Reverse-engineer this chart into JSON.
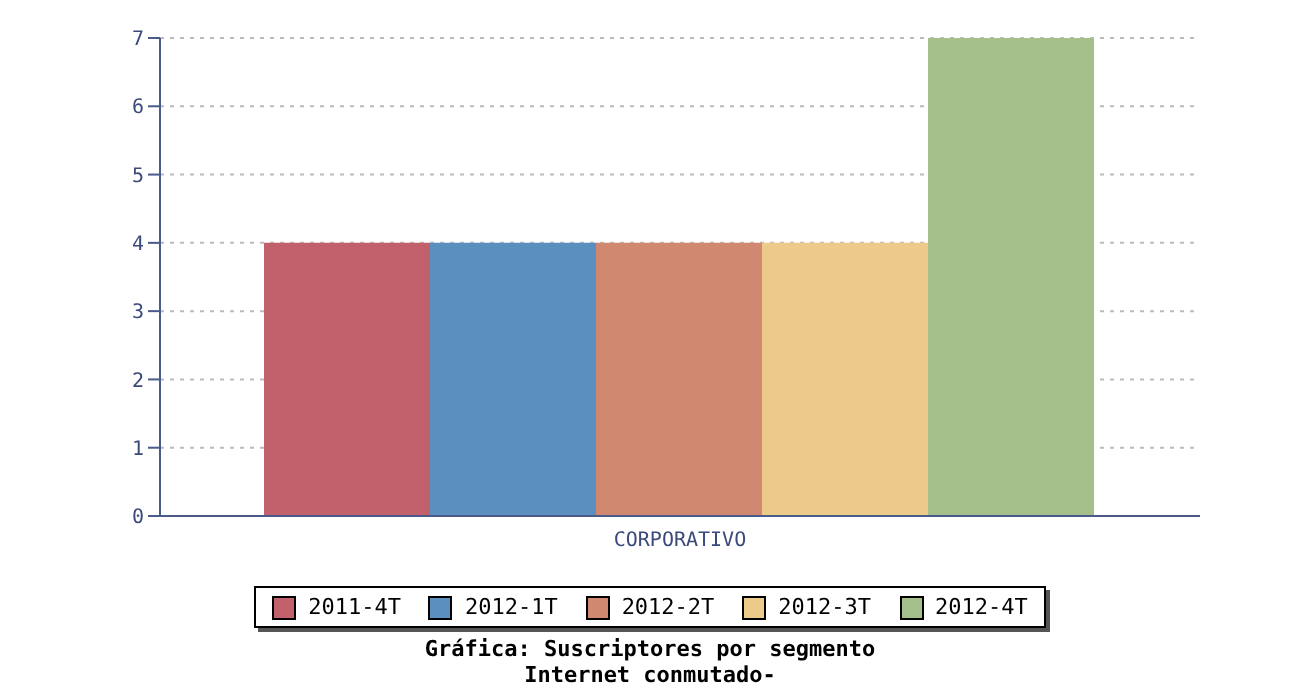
{
  "chart_data": {
    "type": "bar",
    "title": "Gráfica: Suscriptores por segmento",
    "subtitle": "Internet conmutado-",
    "categories": [
      "CORPORATIVO"
    ],
    "series": [
      {
        "name": "2011-4T",
        "color": "#c0616b",
        "values": [
          4
        ]
      },
      {
        "name": "2012-1T",
        "color": "#5b8fc0",
        "values": [
          4
        ]
      },
      {
        "name": "2012-2T",
        "color": "#d08870",
        "values": [
          4
        ]
      },
      {
        "name": "2012-3T",
        "color": "#eccb8a",
        "values": [
          4
        ]
      },
      {
        "name": "2012-4T",
        "color": "#a5bf8a",
        "values": [
          7
        ]
      }
    ],
    "ylim": [
      0,
      7
    ],
    "yticks": [
      0,
      1,
      2,
      3,
      4,
      5,
      6,
      7
    ],
    "grid": "y",
    "legend": "bottom"
  }
}
